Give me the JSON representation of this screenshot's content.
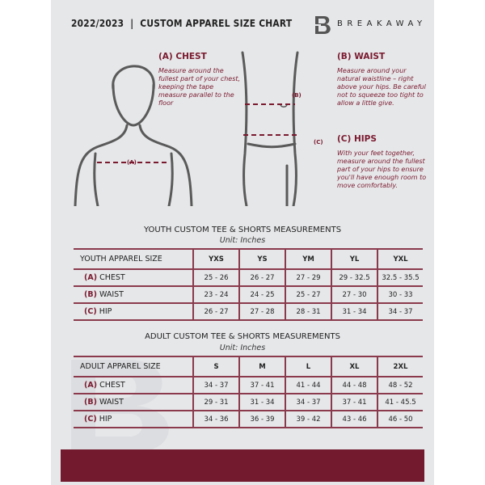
{
  "header": {
    "title": "2022/2023  |  CUSTOM APPAREL SIZE CHART",
    "brand": "BREAKAWAY"
  },
  "guide": {
    "chest": {
      "heading": "(A) CHEST",
      "text": "Measure around the fullest part of your chest, keeping the tape measure parallel to the floor",
      "marker": "(A)"
    },
    "waist": {
      "heading": "(B) WAIST",
      "text": "Measure around your natural waistline – right above your hips. Be careful not to squeeze too tight to allow a little give.",
      "marker": "(B)"
    },
    "hips": {
      "heading": "(C) HIPS",
      "text": "With your feet together, measure around the fullest part of your hips to ensure you'll have enough room to move comfortably.",
      "marker": "(C)"
    }
  },
  "youth": {
    "title": "YOUTH CUSTOM TEE & SHORTS MEASUREMENTS",
    "unit": "Unit: Inches",
    "header": [
      "YOUTH APPAREL SIZE",
      "YXS",
      "YS",
      "YM",
      "YL",
      "YXL"
    ],
    "rows": [
      {
        "mark": "(A)",
        "label": "CHEST",
        "values": [
          "25 - 26",
          "26 - 27",
          "27 - 29",
          "29 - 32.5",
          "32.5 - 35.5"
        ]
      },
      {
        "mark": "(B)",
        "label": "WAIST",
        "values": [
          "23 - 24",
          "24 - 25",
          "25 - 27",
          "27 - 30",
          "30 - 33"
        ]
      },
      {
        "mark": "(C)",
        "label": "HIP",
        "values": [
          "26 - 27",
          "27 - 28",
          "28 - 31",
          "31 - 34",
          "34 - 37"
        ]
      }
    ]
  },
  "adult": {
    "title": "ADULT CUSTOM TEE & SHORTS MEASUREMENTS",
    "unit": "Unit: Inches",
    "header": [
      "ADULT APPAREL SIZE",
      "S",
      "M",
      "L",
      "XL",
      "2XL"
    ],
    "rows": [
      {
        "mark": "(A)",
        "label": "CHEST",
        "values": [
          "34 - 37",
          "37 - 41",
          "41 - 44",
          "44 - 48",
          "48 - 52"
        ]
      },
      {
        "mark": "(B)",
        "label": "WAIST",
        "values": [
          "29 - 31",
          "31 - 34",
          "34 - 37",
          "37 - 41",
          "41 - 45.5"
        ]
      },
      {
        "mark": "(C)",
        "label": "HIP",
        "values": [
          "34 - 36",
          "36 - 39",
          "39 - 42",
          "43 - 46",
          "46 - 50"
        ]
      }
    ]
  },
  "colors": {
    "accent": "#731a2f",
    "background": "#e6e7e9"
  }
}
